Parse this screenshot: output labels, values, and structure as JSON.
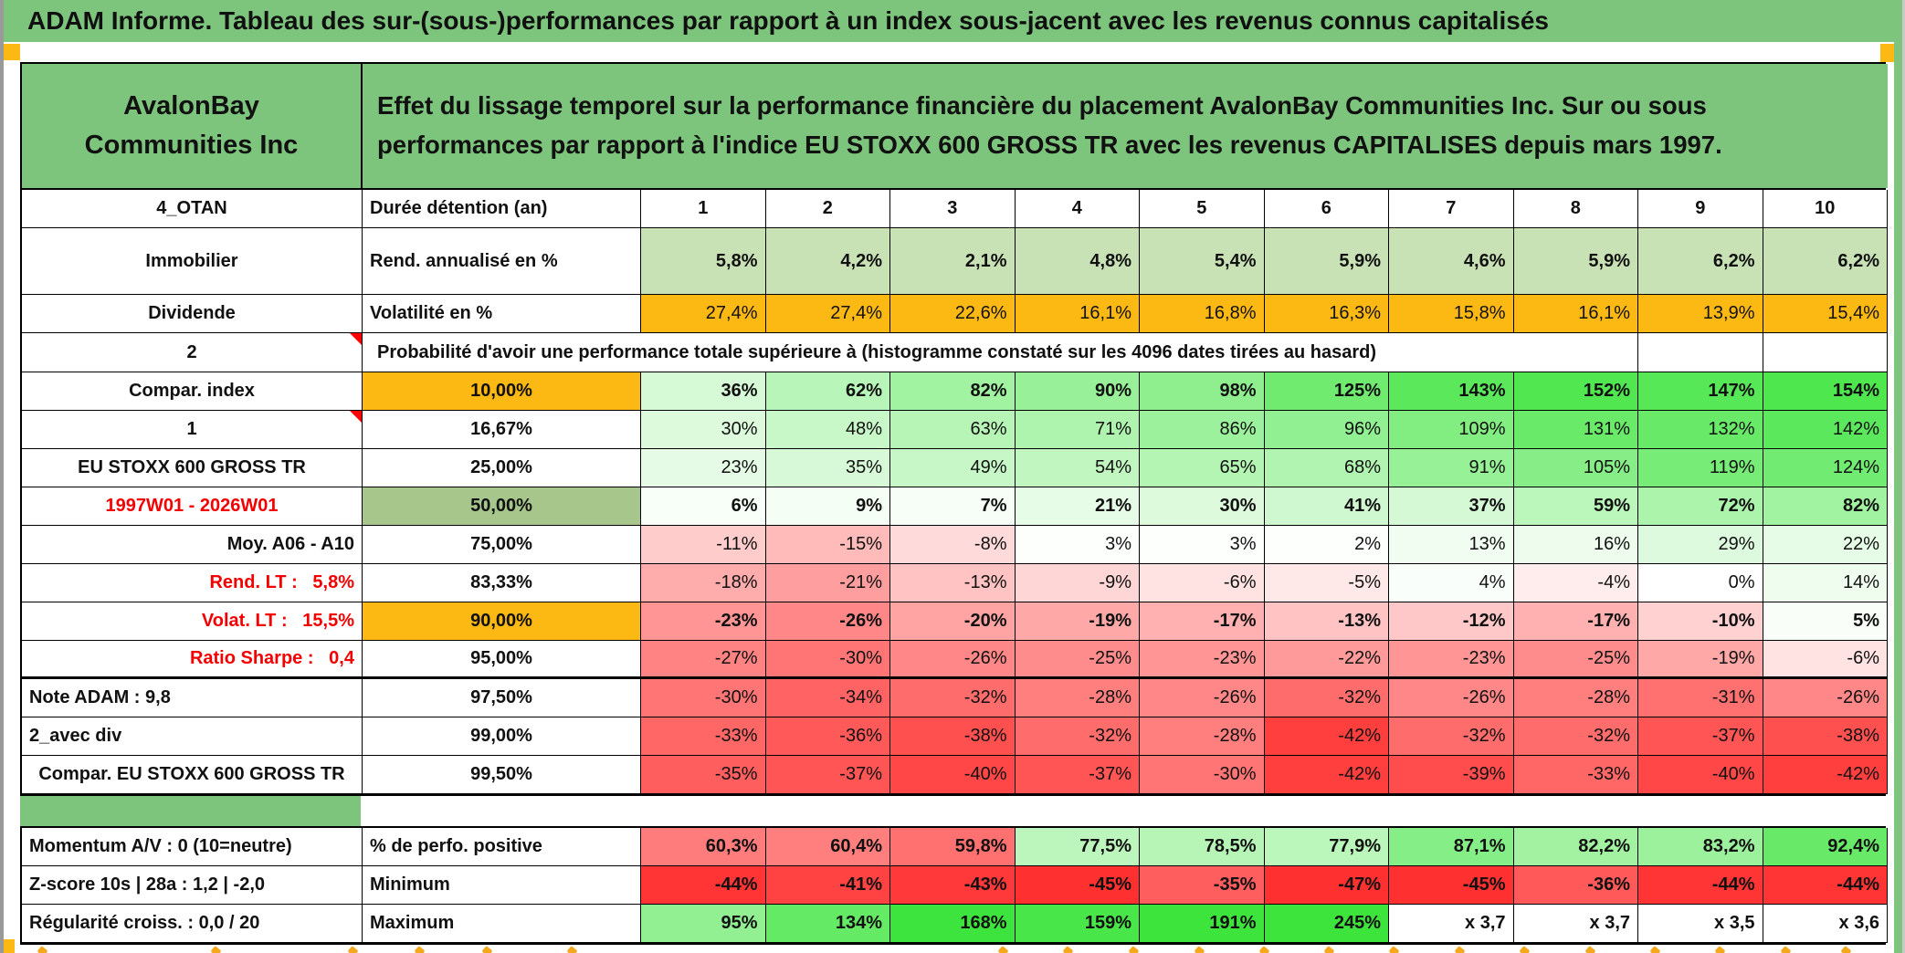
{
  "title": "ADAM Informe. Tableau des sur-(sous-)performances par rapport à un index sous-jacent avec les revenus connus capitalisés",
  "entity": "AvalonBay Communities Inc",
  "description": "Effet du lissage temporel sur la performance financière du placement AvalonBay Communities Inc. Sur ou sous performances par rapport à l'indice EU STOXX 600 GROSS TR avec les revenus CAPITALISES depuis mars 1997.",
  "colors": {
    "band_green": "#7dc47d",
    "bright_green": "#0be312",
    "orange": "#fdb913",
    "sage_green": "#a6c68c",
    "light_green_fill": "#c8e2b5",
    "yellow": "#ffff00",
    "gray_label": "#eaeaea",
    "red_text": "#f40000"
  },
  "table": {
    "rows": [
      {
        "id": "duree",
        "label": "4_OTAN",
        "label_bg": "green",
        "metric": "Durée détention (an)",
        "values": [
          "1",
          "2",
          "3",
          "4",
          "5",
          "6",
          "7",
          "8",
          "9",
          "10"
        ],
        "value_kind": "colheader"
      },
      {
        "id": "rend",
        "label": "Immobilier",
        "label_bg": "green",
        "metric": "Rend. annualisé en %",
        "values": [
          "5,8%",
          "4,2%",
          "2,1%",
          "4,8%",
          "5,4%",
          "5,9%",
          "4,6%",
          "5,9%",
          "6,2%",
          "6,2%"
        ],
        "value_kind": "lightgreen",
        "bold": true,
        "tall": true
      },
      {
        "id": "volat",
        "label": "Dividende",
        "label_bg": "green",
        "metric": "Volatilité en %",
        "values": [
          "27,4%",
          "27,4%",
          "22,6%",
          "16,1%",
          "16,8%",
          "16,3%",
          "15,8%",
          "16,1%",
          "13,9%",
          "15,4%"
        ],
        "value_kind": "orange"
      },
      {
        "id": "prob",
        "label": "2",
        "label_bg": "bright",
        "triangle": true,
        "merged_text": "Probabilité d'avoir une performance totale supérieure à (histogramme constaté sur les 4096 dates tirées au hasard)",
        "merged_span": 8,
        "trailing_empty": 2
      },
      {
        "id": "p10",
        "label": "Compar. index",
        "label_bg": "green",
        "metric": "10,00%",
        "metric_bg": "orange",
        "values": [
          "36%",
          "62%",
          "82%",
          "90%",
          "98%",
          "125%",
          "143%",
          "152%",
          "147%",
          "154%"
        ],
        "value_kind": "heat",
        "bold": true
      },
      {
        "id": "p1667",
        "label": "1",
        "label_bg": "bright",
        "triangle": true,
        "metric": "16,67%",
        "values": [
          "30%",
          "48%",
          "63%",
          "71%",
          "86%",
          "96%",
          "109%",
          "131%",
          "132%",
          "142%"
        ],
        "value_kind": "heat"
      },
      {
        "id": "p25",
        "label": "EU STOXX 600 GROSS TR",
        "label_bg": "green",
        "label_small": true,
        "metric": "25,00%",
        "values": [
          "23%",
          "35%",
          "49%",
          "54%",
          "65%",
          "68%",
          "91%",
          "105%",
          "119%",
          "124%"
        ],
        "value_kind": "heat"
      },
      {
        "id": "p50",
        "label": "1997W01 - 2026W01",
        "label_bg": "white",
        "label_red": true,
        "metric": "50,00%",
        "metric_bg": "sage",
        "values": [
          "6%",
          "9%",
          "7%",
          "21%",
          "30%",
          "41%",
          "37%",
          "59%",
          "72%",
          "82%"
        ],
        "value_kind": "heat",
        "bold": true
      },
      {
        "id": "p75",
        "label": "Moy. A06 - A10",
        "label_bg": "yellow",
        "label_align": "right",
        "metric": "75,00%",
        "values": [
          "-11%",
          "-15%",
          "-8%",
          "3%",
          "3%",
          "2%",
          "13%",
          "16%",
          "29%",
          "22%"
        ],
        "value_kind": "heat"
      },
      {
        "id": "p8333",
        "label": "Rend. LT :   5,8%",
        "label_bg": "white",
        "label_red": true,
        "label_align": "right",
        "metric": "83,33%",
        "values": [
          "-18%",
          "-21%",
          "-13%",
          "-9%",
          "-6%",
          "-5%",
          "4%",
          "-4%",
          "0%",
          "14%"
        ],
        "value_kind": "heat"
      },
      {
        "id": "p90",
        "label": "Volat. LT :   15,5%",
        "label_bg": "white",
        "label_red": true,
        "label_align": "right",
        "metric": "90,00%",
        "metric_bg": "orange",
        "values": [
          "-23%",
          "-26%",
          "-20%",
          "-19%",
          "-17%",
          "-13%",
          "-12%",
          "-17%",
          "-10%",
          "5%"
        ],
        "value_kind": "heat",
        "bold": true
      },
      {
        "id": "p95",
        "label": "Ratio Sharpe :   0,4",
        "label_bg": "white",
        "label_red": true,
        "label_align": "right",
        "metric": "95,00%",
        "values": [
          "-27%",
          "-30%",
          "-26%",
          "-25%",
          "-23%",
          "-22%",
          "-23%",
          "-25%",
          "-19%",
          "-6%"
        ],
        "value_kind": "heat",
        "thick_bottom": true
      },
      {
        "id": "p975",
        "label": "Note ADAM : 9,8",
        "label_bg": "yellow",
        "label_align": "left",
        "metric": "97,50%",
        "values": [
          "-30%",
          "-34%",
          "-32%",
          "-28%",
          "-26%",
          "-32%",
          "-26%",
          "-28%",
          "-31%",
          "-26%"
        ],
        "value_kind": "heat"
      },
      {
        "id": "p99",
        "label": "2_avec div",
        "label_bg": "yellow",
        "label_align": "left",
        "metric": "99,00%",
        "values": [
          "-33%",
          "-36%",
          "-38%",
          "-32%",
          "-28%",
          "-42%",
          "-32%",
          "-32%",
          "-37%",
          "-38%"
        ],
        "value_kind": "heat"
      },
      {
        "id": "p995",
        "label": "Compar. EU STOXX 600 GROSS TR",
        "label_bg": "white",
        "label_small": true,
        "metric": "99,50%",
        "values": [
          "-35%",
          "-37%",
          "-40%",
          "-37%",
          "-30%",
          "-42%",
          "-39%",
          "-33%",
          "-40%",
          "-42%"
        ],
        "value_kind": "heat"
      }
    ],
    "bottom_rows": [
      {
        "id": "perfpos",
        "label": "Momentum A/V : 0 (10=neutre)",
        "metric": "% de perfo. positive",
        "values": [
          "60,3%",
          "60,4%",
          "59,8%",
          "77,5%",
          "78,5%",
          "77,9%",
          "87,1%",
          "82,2%",
          "83,2%",
          "92,4%"
        ],
        "value_kind": "heat_centered",
        "bold": true
      },
      {
        "id": "min",
        "label": "Z-score 10s | 28a : 1,2 | -2,0",
        "metric": "Minimum",
        "values": [
          "-44%",
          "-41%",
          "-43%",
          "-45%",
          "-35%",
          "-47%",
          "-45%",
          "-36%",
          "-44%",
          "-44%"
        ],
        "value_kind": "heat",
        "bold": true
      },
      {
        "id": "max",
        "label": "Régularité croiss. : 0,0 / 20",
        "metric": "Maximum",
        "values": [
          "95%",
          "134%",
          "168%",
          "159%",
          "191%",
          "245%",
          "x 3,7",
          "x 3,7",
          "x 3,5",
          "x 3,6"
        ],
        "value_kind": "heat",
        "bold": true
      }
    ]
  }
}
